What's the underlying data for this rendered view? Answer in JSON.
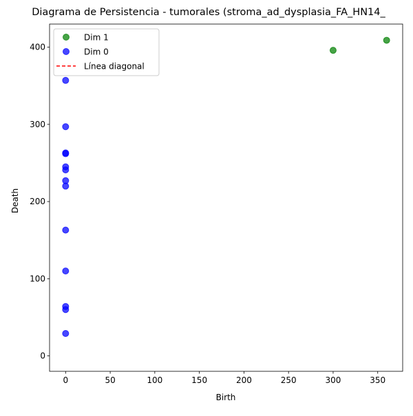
{
  "chart_data": {
    "type": "scatter",
    "title": "Diagrama de Persistencia - tumorales (stroma_ad_dysplasia_FA_HN14_",
    "xlabel": "Birth",
    "ylabel": "Death",
    "xlim": [
      -18,
      378
    ],
    "ylim": [
      -20,
      430
    ],
    "x_ticks": [
      0,
      50,
      100,
      150,
      200,
      250,
      300,
      350
    ],
    "y_ticks": [
      0,
      100,
      200,
      300,
      400
    ],
    "grid": false,
    "legend_position": "upper-left",
    "series": [
      {
        "name": "Dim 1",
        "color": "#008000",
        "points": [
          {
            "x": 300,
            "y": 396
          },
          {
            "x": 360,
            "y": 409
          }
        ]
      },
      {
        "name": "Dim 0",
        "color": "#0000ff",
        "points": [
          {
            "x": 0,
            "y": 29
          },
          {
            "x": 0,
            "y": 60
          },
          {
            "x": 0,
            "y": 64
          },
          {
            "x": 0,
            "y": 110
          },
          {
            "x": 0,
            "y": 163
          },
          {
            "x": 0,
            "y": 220
          },
          {
            "x": 0,
            "y": 227
          },
          {
            "x": 0,
            "y": 241
          },
          {
            "x": 0,
            "y": 245
          },
          {
            "x": 0,
            "y": 262
          },
          {
            "x": 0,
            "y": 263
          },
          {
            "x": 0,
            "y": 297
          },
          {
            "x": 0,
            "y": 357
          }
        ]
      }
    ],
    "reference_line": {
      "name": "Línea diagonal",
      "color": "#ff0000",
      "style": "dashed"
    }
  }
}
